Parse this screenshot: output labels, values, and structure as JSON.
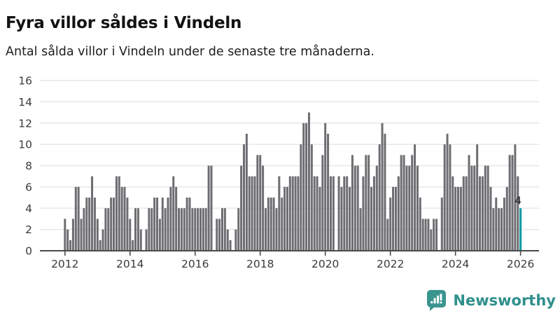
{
  "header": {
    "title": "Fyra villor såldes i Vindeln",
    "subtitle": "Antal sålda villor i Vindeln under de senaste tre månaderna."
  },
  "chart_data": {
    "type": "bar",
    "title": "Fyra villor såldes i Vindeln",
    "subtitle": "Antal sålda villor i Vindeln under de senaste tre månaderna.",
    "x_unit": "month",
    "x_start": "2012-01",
    "x_end": "2026-01",
    "xlabel": "",
    "ylabel": "",
    "ylim": [
      0,
      16
    ],
    "yticks": [
      0,
      2,
      4,
      6,
      8,
      10,
      12,
      14,
      16
    ],
    "xticks": [
      2012,
      2014,
      2016,
      2018,
      2020,
      2022,
      2024,
      2026
    ],
    "grid": true,
    "legend": false,
    "bar_color": "#6d6d72",
    "highlight_color": "#0a9aa2",
    "highlight_last_bar": true,
    "annotations": [
      {
        "text": "4",
        "target": "last-bar"
      }
    ],
    "values": [
      3,
      2,
      1,
      3,
      6,
      6,
      3,
      4,
      5,
      5,
      7,
      5,
      3,
      1,
      2,
      4,
      4,
      5,
      5,
      7,
      7,
      6,
      6,
      5,
      3,
      1,
      4,
      4,
      2,
      0,
      2,
      4,
      4,
      5,
      5,
      3,
      5,
      4,
      5,
      6,
      7,
      6,
      4,
      4,
      4,
      5,
      5,
      4,
      4,
      4,
      4,
      4,
      4,
      8,
      8,
      0,
      3,
      3,
      4,
      4,
      2,
      1,
      0,
      2,
      4,
      8,
      10,
      11,
      7,
      7,
      7,
      9,
      9,
      8,
      4,
      5,
      5,
      5,
      4,
      7,
      5,
      6,
      6,
      7,
      7,
      7,
      7,
      10,
      12,
      12,
      13,
      10,
      7,
      7,
      6,
      9,
      12,
      11,
      7,
      7,
      0,
      7,
      6,
      7,
      7,
      6,
      9,
      8,
      8,
      4,
      7,
      9,
      9,
      6,
      7,
      8,
      10,
      12,
      11,
      3,
      5,
      6,
      6,
      7,
      9,
      9,
      8,
      8,
      9,
      10,
      8,
      5,
      3,
      3,
      3,
      2,
      3,
      3,
      0,
      5,
      10,
      11,
      10,
      7,
      6,
      6,
      6,
      7,
      7,
      9,
      8,
      8,
      10,
      7,
      7,
      8,
      8,
      6,
      4,
      5,
      4,
      4,
      5,
      6,
      9,
      9,
      10,
      7,
      4
    ]
  },
  "axis_style": {
    "tick_label_color": "#3b3b3b",
    "gridline_color": "#e7e7e7",
    "baseline_color": "#4b4b4b",
    "annotation_color": "#1f1f1f"
  },
  "branding": {
    "logo_text": "Newsworthy",
    "logo_color": "#2f8f8c",
    "logo_icon": "speech-bubble-bar-chart-icon",
    "logo_icon_color": "#3a958f"
  }
}
